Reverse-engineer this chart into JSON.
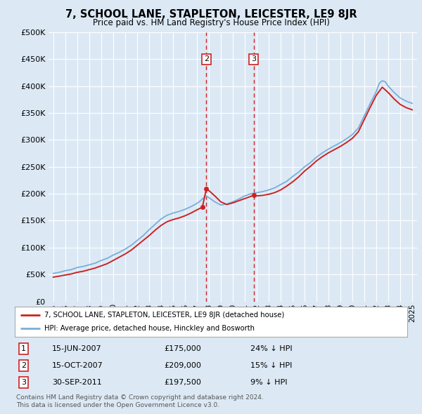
{
  "title": "7, SCHOOL LANE, STAPLETON, LEICESTER, LE9 8JR",
  "subtitle": "Price paid vs. HM Land Registry's House Price Index (HPI)",
  "background_color": "#dce9f5",
  "plot_bg_color": "#dce9f5",
  "hpi_color": "#7aaed6",
  "price_color": "#cc2222",
  "dashed_color": "#cc2222",
  "transactions": [
    {
      "label": "1",
      "date_str": "15-JUN-2007",
      "price": 175000,
      "rel": "24% ↓ HPI",
      "x_year": 2007.46
    },
    {
      "label": "2",
      "date_str": "15-OCT-2007",
      "price": 209000,
      "rel": "15% ↓ HPI",
      "x_year": 2007.79
    },
    {
      "label": "3",
      "date_str": "30-SEP-2011",
      "price": 197500,
      "rel": "9% ↓ HPI",
      "x_year": 2011.75
    }
  ],
  "legend_line1": "7, SCHOOL LANE, STAPLETON, LEICESTER, LE9 8JR (detached house)",
  "legend_line2": "HPI: Average price, detached house, Hinckley and Bosworth",
  "footnote1": "Contains HM Land Registry data © Crown copyright and database right 2024.",
  "footnote2": "This data is licensed under the Open Government Licence v3.0.",
  "ylim": [
    0,
    500000
  ],
  "yticks": [
    0,
    50000,
    100000,
    150000,
    200000,
    250000,
    300000,
    350000,
    400000,
    450000,
    500000
  ],
  "xlim_start": 1994.6,
  "xlim_end": 2025.4,
  "hpi_years": [
    1995,
    1995.5,
    1996,
    1996.5,
    1997,
    1997.5,
    1998,
    1998.5,
    1999,
    1999.5,
    2000,
    2000.5,
    2001,
    2001.5,
    2002,
    2002.5,
    2003,
    2003.5,
    2004,
    2004.5,
    2005,
    2005.5,
    2006,
    2006.5,
    2007,
    2007.25,
    2007.5,
    2007.75,
    2008,
    2008.5,
    2009,
    2009.5,
    2010,
    2010.5,
    2011,
    2011.5,
    2012,
    2012.5,
    2013,
    2013.5,
    2014,
    2014.5,
    2015,
    2015.5,
    2016,
    2016.5,
    2017,
    2017.5,
    2018,
    2018.5,
    2019,
    2019.5,
    2020,
    2020.5,
    2021,
    2021.5,
    2022,
    2022.25,
    2022.5,
    2022.75,
    2023,
    2023.5,
    2024,
    2024.5,
    2025
  ],
  "hpi_values": [
    52000,
    54000,
    57000,
    59000,
    63000,
    65000,
    68000,
    71000,
    76000,
    80000,
    86000,
    91000,
    97000,
    104000,
    113000,
    122000,
    133000,
    143000,
    153000,
    160000,
    164000,
    167000,
    171000,
    176000,
    182000,
    186000,
    191000,
    196000,
    193000,
    185000,
    179000,
    181000,
    185000,
    190000,
    196000,
    200000,
    202000,
    204000,
    207000,
    211000,
    217000,
    223000,
    232000,
    240000,
    250000,
    258000,
    268000,
    276000,
    283000,
    289000,
    295000,
    302000,
    310000,
    322000,
    345000,
    368000,
    390000,
    405000,
    410000,
    408000,
    400000,
    388000,
    378000,
    372000,
    368000
  ],
  "price_years": [
    1995,
    1995.5,
    1996,
    1996.5,
    1997,
    1997.5,
    1998,
    1998.5,
    1999,
    1999.5,
    2000,
    2000.5,
    2001,
    2001.5,
    2002,
    2002.5,
    2003,
    2003.5,
    2004,
    2004.5,
    2005,
    2005.5,
    2006,
    2006.5,
    2007.0,
    2007.46,
    2007.79,
    2008.0,
    2008.5,
    2009,
    2009.5,
    2010,
    2010.5,
    2011,
    2011.5,
    2011.75,
    2012,
    2012.5,
    2013,
    2013.5,
    2014,
    2014.5,
    2015,
    2015.5,
    2016,
    2016.5,
    2017,
    2017.5,
    2018,
    2018.5,
    2019,
    2019.5,
    2020,
    2020.5,
    2021,
    2021.5,
    2022,
    2022.5,
    2023,
    2023.5,
    2024,
    2024.5,
    2025
  ],
  "price_values": [
    45000,
    47000,
    49000,
    51000,
    54000,
    56000,
    59000,
    62000,
    66000,
    70000,
    76000,
    82000,
    88000,
    95000,
    104000,
    113000,
    122000,
    132000,
    141000,
    148000,
    152000,
    155000,
    159000,
    164000,
    170000,
    175000,
    209000,
    206000,
    196000,
    185000,
    180000,
    183000,
    187000,
    191000,
    195000,
    197500,
    196000,
    197000,
    199000,
    202000,
    207000,
    214000,
    222000,
    231000,
    242000,
    251000,
    261000,
    269000,
    276000,
    282000,
    288000,
    295000,
    303000,
    315000,
    338000,
    361000,
    383000,
    398000,
    388000,
    376000,
    366000,
    360000,
    356000
  ]
}
